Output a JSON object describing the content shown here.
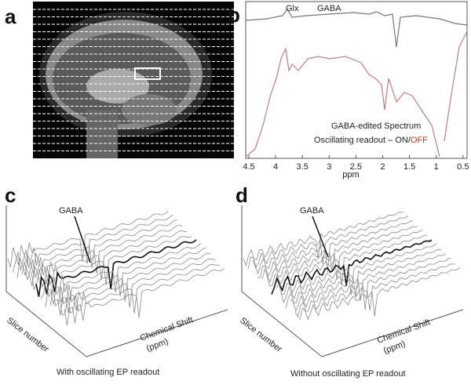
{
  "panels": [
    {
      "label": "a"
    },
    {
      "label": "b",
      "annotations": [
        "Glx",
        "GABA"
      ],
      "legend": [
        "GABA-edited Spectrum",
        "Oscillating readout – ON/",
        "OFF"
      ],
      "xticks": [
        "4.5",
        "4",
        "3.5",
        "3",
        "2.5",
        "2",
        "1.5",
        "1",
        "0.5"
      ],
      "xlabel": "ppm"
    },
    {
      "label": "c",
      "annotation": "GABA",
      "ylabel": "Slice number",
      "xlabel": [
        "Chemical Shift",
        "(ppm)"
      ],
      "caption": "With oscillating EP readout"
    },
    {
      "label": "d",
      "annotation": "GABA",
      "ylabel": "Slice number",
      "xlabel": [
        "Chemical Shift",
        "(ppm)"
      ],
      "caption": "Without oscillating EP readout"
    }
  ]
}
